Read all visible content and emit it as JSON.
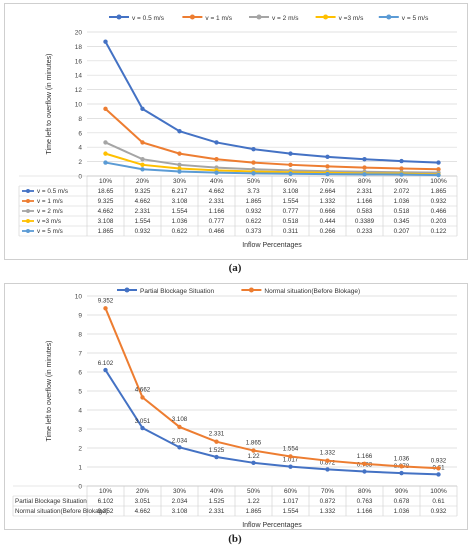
{
  "chart_data": [
    {
      "type": "line",
      "panel_label": "(a)",
      "categories": [
        "10%",
        "20%",
        "30%",
        "40%",
        "50%",
        "60%",
        "70%",
        "80%",
        "90%",
        "100%"
      ],
      "series": [
        {
          "name": "v = 0.5 m/s",
          "color": "#4472C4",
          "values": [
            18.65,
            9.325,
            6.217,
            4.662,
            3.73,
            3.108,
            2.664,
            2.331,
            2.072,
            1.865
          ],
          "labels": [
            "18.65",
            "9.325",
            "6.217",
            "4.662",
            "3.73",
            "3.108",
            "2.664",
            "2.331",
            "2.072",
            "1.865"
          ]
        },
        {
          "name": "v = 1 m/s",
          "color": "#ED7D31",
          "values": [
            9.325,
            4.662,
            3.108,
            2.331,
            1.865,
            1.554,
            1.332,
            1.166,
            1.036,
            0.932
          ],
          "labels": [
            "9.325",
            "4.662",
            "3.108",
            "2.331",
            "1.865",
            "1.554",
            "1.332",
            "1.166",
            "1.036",
            "0.932"
          ]
        },
        {
          "name": "v = 2 m/s",
          "color": "#A5A5A5",
          "values": [
            4.662,
            2.331,
            1.554,
            1.166,
            0.932,
            0.777,
            0.666,
            0.583,
            0.518,
            0.466
          ],
          "labels": [
            "4.662",
            "2.331",
            "1.554",
            "1.166",
            "0.932",
            "0.777",
            "0.666",
            "0.583",
            "0.518",
            "0.466"
          ]
        },
        {
          "name": "v =3 m/s",
          "color": "#FFC000",
          "values": [
            3.108,
            1.554,
            1.036,
            0.777,
            0.622,
            0.518,
            0.444,
            0.3389,
            0.345,
            0.203
          ],
          "labels": [
            "3.108",
            "1.554",
            "1.036",
            "0.777",
            "0.622",
            "0.518",
            "0.444",
            "0.3389",
            "0.345",
            "0.203"
          ]
        },
        {
          "name": "v = 5 m/s",
          "color": "#5B9BD5",
          "values": [
            1.865,
            0.932,
            0.622,
            0.466,
            0.373,
            0.311,
            0.266,
            0.233,
            0.207,
            0.122
          ],
          "labels": [
            "1.865",
            "0.932",
            "0.622",
            "0.466",
            "0.373",
            "0.311",
            "0.266",
            "0.233",
            "0.207",
            "0.122"
          ]
        }
      ],
      "ylabel": "Time left to overflow (in minutes)",
      "xlabel": "Inflow Percentages",
      "ylim": [
        0,
        20
      ],
      "yticks": [
        "0",
        "2",
        "4",
        "6",
        "8",
        "10",
        "12",
        "14",
        "16",
        "18",
        "20"
      ],
      "grid": true,
      "legend": "top",
      "data_table": true
    },
    {
      "type": "line",
      "panel_label": "(b)",
      "categories": [
        "10%",
        "20%",
        "30%",
        "40%",
        "50%",
        "60%",
        "70%",
        "80%",
        "90%",
        "100%"
      ],
      "series": [
        {
          "name": "Partial Blockage Situation",
          "color": "#4472C4",
          "values": [
            6.102,
            3.051,
            2.034,
            1.525,
            1.22,
            1.017,
            0.872,
            0.763,
            0.678,
            0.61
          ],
          "labels": [
            "6.102",
            "3.051",
            "2.034",
            "1.525",
            "1.22",
            "1.017",
            "0.872",
            "0.763",
            "0.678",
            "0.61"
          ]
        },
        {
          "name": "Normal situation(Before Blokage)",
          "color": "#ED7D31",
          "values": [
            9.352,
            4.662,
            3.108,
            2.331,
            1.865,
            1.554,
            1.332,
            1.166,
            1.036,
            0.932
          ],
          "labels": [
            "9.352",
            "4.662",
            "3.108",
            "2.331",
            "1.865",
            "1.554",
            "1.332",
            "1.166",
            "1.036",
            "0.932"
          ]
        }
      ],
      "ylabel": "Time left to overflow (in minutes)",
      "xlabel": "Inflow Percentages",
      "ylim": [
        0,
        10
      ],
      "yticks": [
        "0",
        "1",
        "2",
        "3",
        "4",
        "5",
        "6",
        "7",
        "8",
        "9",
        "10"
      ],
      "grid": true,
      "legend": "top",
      "data_labels": true,
      "data_table": true
    }
  ]
}
